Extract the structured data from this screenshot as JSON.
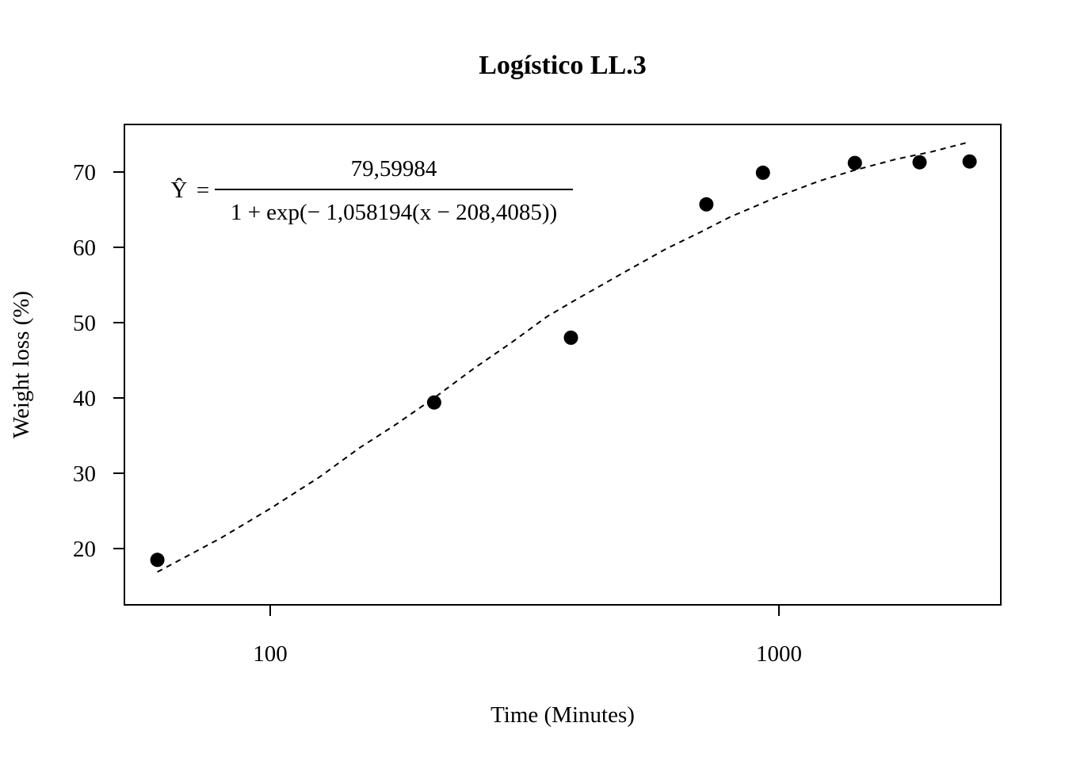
{
  "chart_data": {
    "type": "scatter",
    "title": "Logístico LL.3",
    "xlabel": "Time (Minutes)",
    "ylabel": "Weight loss (%)",
    "x_scale": "log",
    "xlim": [
      60,
      2500
    ],
    "ylim": [
      13,
      75
    ],
    "x_ticks": [
      {
        "value": 100,
        "label": "100"
      },
      {
        "value": 1000,
        "label": "1000"
      }
    ],
    "y_ticks": [
      {
        "value": 20,
        "label": "20"
      },
      {
        "value": 30,
        "label": "30"
      },
      {
        "value": 40,
        "label": "40"
      },
      {
        "value": 50,
        "label": "50"
      },
      {
        "value": 60,
        "label": "60"
      },
      {
        "value": 70,
        "label": "70"
      }
    ],
    "grid": false,
    "series": [
      {
        "kind": "points",
        "x": [
          60,
          210,
          390,
          720,
          930,
          1410,
          1890,
          2370
        ],
        "y": [
          18.5,
          39.4,
          48.0,
          65.7,
          69.9,
          71.2,
          71.3,
          71.4
        ]
      },
      {
        "kind": "fitted-curve",
        "line_style": "dashed",
        "x": [
          60,
          70,
          80,
          100,
          125,
          150,
          175,
          210,
          250,
          300,
          350,
          400,
          500,
          600,
          700,
          800,
          1000,
          1200,
          1400,
          1700,
          2000,
          2370
        ],
        "y": [
          16.9,
          19.3,
          21.4,
          25.3,
          29.5,
          33.4,
          36.3,
          40.0,
          43.8,
          47.5,
          50.8,
          53.1,
          56.8,
          59.8,
          62.0,
          64.0,
          66.8,
          68.8,
          70.2,
          71.7,
          72.7,
          74.0
        ]
      }
    ],
    "equation": {
      "lhs": "Ŷ",
      "equals": "=",
      "numerator": "79,59984",
      "denominator": "1 + exp(− 1,058194(x − 208,4085))"
    },
    "colors": {
      "points": "#000000",
      "curve": "#000000",
      "axes": "#000000",
      "background": "#ffffff"
    }
  }
}
